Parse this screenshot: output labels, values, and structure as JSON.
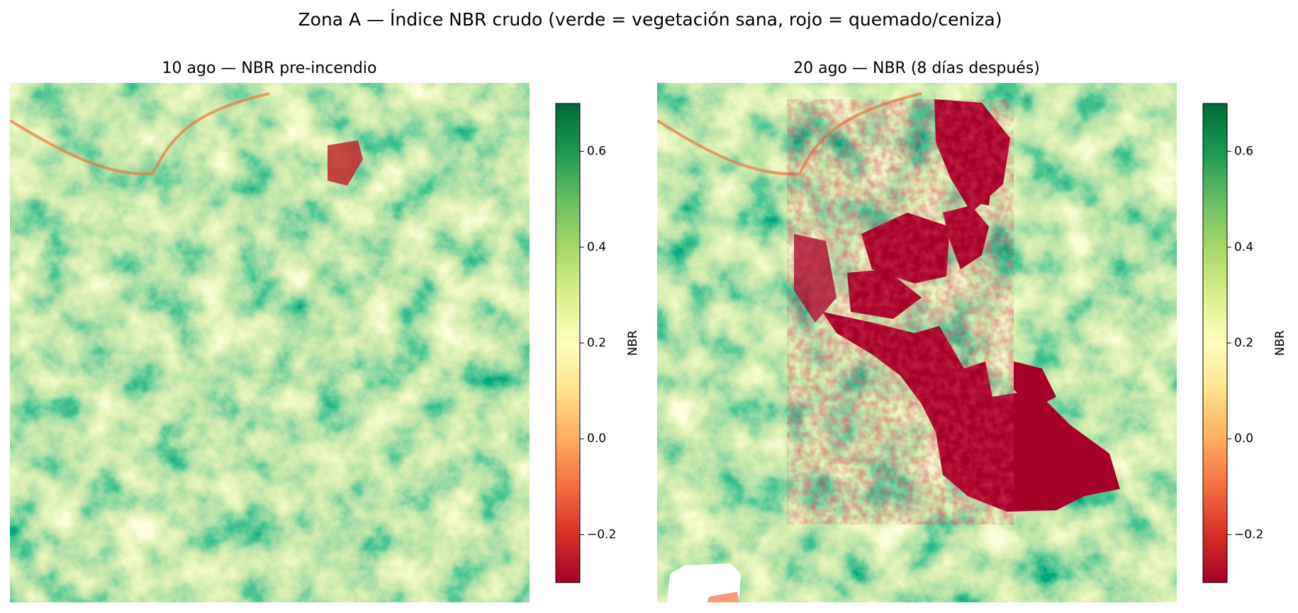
{
  "title": "Zona A — Índice NBR crudo (verde = vegetación sana, rojo = quemado/ceniza)",
  "chart_data": [
    {
      "type": "heatmap",
      "title": "10 ago — NBR pre-incendio",
      "colormap": "RdYlGn",
      "colorbar_label": "NBR",
      "clim": [
        -0.3,
        0.7
      ],
      "cticks": [
        {
          "value": -0.2,
          "label": "−0.2"
        },
        {
          "value": 0,
          "label": "0.0"
        },
        0.2,
        0.4,
        0.6
      ]
    },
    {
      "type": "heatmap",
      "title": "20 ago — NBR (8 días después)",
      "colormap": "RdYlGn",
      "colorbar_label": "NBR",
      "clim": [
        -0.3,
        0.7
      ],
      "cticks": [
        {
          "value": -0.2,
          "label": "−0.2"
        },
        {
          "value": 0,
          "label": "0.0"
        },
        0.2,
        0.4,
        0.6
      ]
    }
  ]
}
